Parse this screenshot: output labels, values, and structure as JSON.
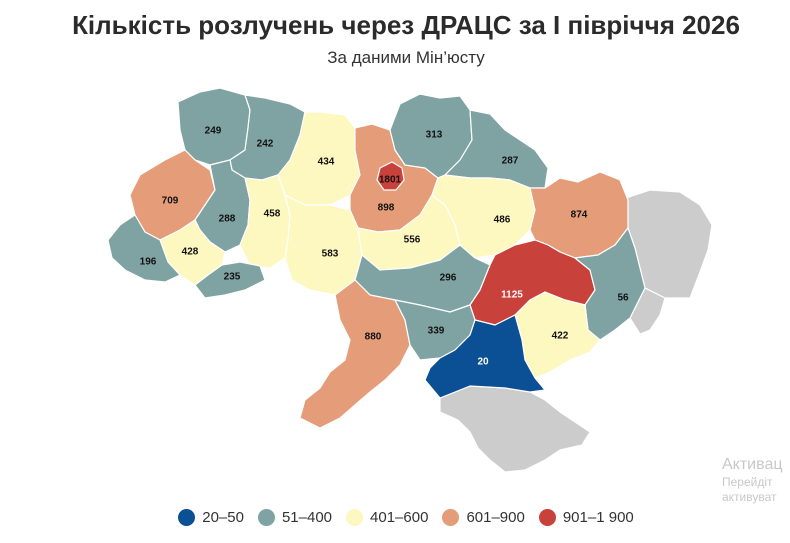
{
  "header": {
    "title": "Кількість розлучень через ДРАЦС за І півріччя 2026",
    "subtitle": "За даними Мін’юсту"
  },
  "legend": [
    {
      "label": "20–50",
      "color": "#0b4f94"
    },
    {
      "label": "51–400",
      "color": "#7fa3a3"
    },
    {
      "label": "401–600",
      "color": "#fdf7c0"
    },
    {
      "label": "601–900",
      "color": "#e59c79"
    },
    {
      "label": "901–1 900",
      "color": "#c9413b"
    }
  ],
  "no_data_color": "#cccccc",
  "regions": [
    {
      "value": 249,
      "label": "249",
      "color": "#7fa3a3"
    },
    {
      "value": 242,
      "label": "242",
      "color": "#7fa3a3"
    },
    {
      "value": 434,
      "label": "434",
      "color": "#fdf7c0"
    },
    {
      "value": 1801,
      "label": "1801",
      "color": "#c9413b"
    },
    {
      "value": 898,
      "label": "898",
      "color": "#e59c79"
    },
    {
      "value": 313,
      "label": "313",
      "color": "#7fa3a3"
    },
    {
      "value": 287,
      "label": "287",
      "color": "#7fa3a3"
    },
    {
      "value": 709,
      "label": "709",
      "color": "#e59c79"
    },
    {
      "value": 288,
      "label": "288",
      "color": "#7fa3a3"
    },
    {
      "value": 458,
      "label": "458",
      "color": "#fdf7c0"
    },
    {
      "value": 583,
      "label": "583",
      "color": "#fdf7c0"
    },
    {
      "value": 556,
      "label": "556",
      "color": "#fdf7c0"
    },
    {
      "value": 486,
      "label": "486",
      "color": "#fdf7c0"
    },
    {
      "value": 874,
      "label": "874",
      "color": "#e59c79"
    },
    {
      "value": 428,
      "label": "428",
      "color": "#fdf7c0"
    },
    {
      "value": 196,
      "label": "196",
      "color": "#7fa3a3"
    },
    {
      "value": 235,
      "label": "235",
      "color": "#7fa3a3"
    },
    {
      "value": 296,
      "label": "296",
      "color": "#7fa3a3"
    },
    {
      "value": 1125,
      "label": "1125",
      "color": "#c9413b"
    },
    {
      "value": 56,
      "label": "56",
      "color": "#7fa3a3"
    },
    {
      "value": 880,
      "label": "880",
      "color": "#e59c79"
    },
    {
      "value": 339,
      "label": "339",
      "color": "#7fa3a3"
    },
    {
      "value": 422,
      "label": "422",
      "color": "#fdf7c0"
    },
    {
      "value": 20,
      "label": "20",
      "color": "#0b4f94"
    }
  ],
  "watermark": {
    "line1": "Активац",
    "line2": "Перейдіт",
    "line3": "активуват"
  }
}
